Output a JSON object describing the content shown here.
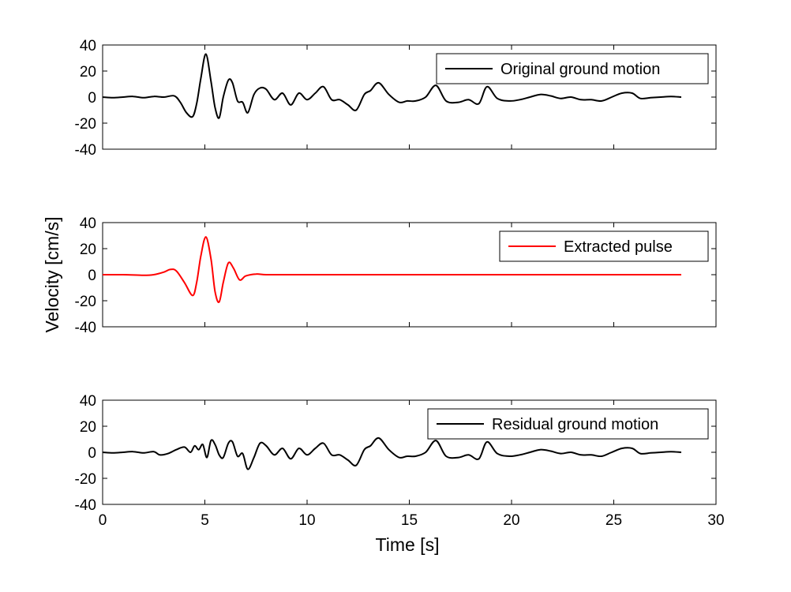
{
  "chart_data": {
    "type": "line",
    "xlabel": "Time [s]",
    "ylabel": "Velocity [cm/s]",
    "xlim": [
      0,
      30
    ],
    "xticks": [
      0,
      5,
      10,
      15,
      20,
      25,
      30
    ],
    "ylim": [
      -40,
      40
    ],
    "yticks": [
      -40,
      -20,
      0,
      20,
      40
    ],
    "grid": false,
    "legend_position": "top-right",
    "panels": [
      {
        "legend": "Original ground motion",
        "color": "#000000",
        "x": [
          0,
          0.5,
          1,
          1.5,
          2,
          2.5,
          3,
          3.5,
          3.8,
          4.1,
          4.4,
          4.6,
          4.8,
          5.05,
          5.3,
          5.5,
          5.7,
          5.9,
          6.15,
          6.35,
          6.6,
          6.85,
          7.1,
          7.4,
          7.7,
          8.0,
          8.4,
          8.8,
          9.2,
          9.6,
          10.0,
          10.4,
          10.8,
          11.2,
          11.6,
          12.0,
          12.4,
          12.8,
          13.1,
          13.5,
          14.0,
          14.5,
          14.9,
          15.3,
          15.8,
          16.3,
          16.8,
          17.4,
          17.9,
          18.4,
          18.8,
          19.3,
          19.9,
          20.4,
          20.9,
          21.4,
          21.9,
          22.4,
          22.9,
          23.4,
          23.9,
          24.4,
          24.9,
          25.4,
          25.9,
          26.3,
          26.8,
          27.3,
          27.8,
          28.3
        ],
        "values": [
          0,
          -0.5,
          0,
          0.5,
          -0.5,
          0.5,
          0,
          1,
          -4,
          -12,
          -15,
          -5,
          14,
          33,
          12,
          -8,
          -16,
          0,
          13,
          11,
          -3,
          -4,
          -12,
          2,
          7,
          6,
          -2,
          3,
          -6,
          3,
          -2,
          3,
          8,
          -2,
          -2,
          -6,
          -10,
          2,
          5,
          11,
          2,
          -4,
          -3,
          -3,
          0,
          9,
          -3,
          -4,
          -2,
          -5,
          8,
          -1,
          -3,
          -2,
          0,
          2,
          1,
          -1,
          0,
          -2,
          -2,
          -3,
          0,
          3,
          3,
          -1,
          -0.5,
          0,
          0.5,
          0
        ]
      },
      {
        "legend": "Extracted pulse",
        "color": "#ff0000",
        "x": [
          0,
          1,
          2,
          2.5,
          3,
          3.3,
          3.6,
          4.0,
          4.4,
          4.6,
          4.8,
          5.05,
          5.3,
          5.5,
          5.7,
          5.9,
          6.15,
          6.4,
          6.7,
          7.0,
          7.5,
          8.0,
          9.0,
          10,
          12,
          15,
          20,
          25,
          28.3
        ],
        "values": [
          0,
          0,
          -0.5,
          0,
          2,
          4,
          3,
          -6,
          -16,
          -6,
          14,
          29,
          12,
          -13,
          -21,
          -6,
          9,
          5,
          -4,
          -1,
          0.5,
          0,
          0,
          0,
          0,
          0,
          0,
          0,
          0
        ]
      },
      {
        "legend": "Residual ground motion",
        "color": "#000000",
        "x": [
          0,
          0.5,
          1,
          1.5,
          2,
          2.5,
          2.8,
          3.2,
          3.6,
          4.0,
          4.3,
          4.5,
          4.7,
          4.9,
          5.1,
          5.3,
          5.5,
          5.7,
          5.9,
          6.15,
          6.35,
          6.6,
          6.85,
          7.1,
          7.4,
          7.7,
          8.0,
          8.4,
          8.8,
          9.2,
          9.6,
          10.0,
          10.4,
          10.8,
          11.2,
          11.6,
          12.0,
          12.4,
          12.8,
          13.1,
          13.5,
          14.0,
          14.5,
          14.9,
          15.3,
          15.8,
          16.3,
          16.8,
          17.4,
          17.9,
          18.4,
          18.8,
          19.3,
          19.9,
          20.4,
          20.9,
          21.4,
          21.9,
          22.4,
          22.9,
          23.4,
          23.9,
          24.4,
          24.9,
          25.4,
          25.9,
          26.3,
          26.8,
          27.3,
          27.8,
          28.3
        ],
        "values": [
          0,
          -0.5,
          0,
          0.5,
          -0.5,
          0.5,
          -2,
          -1,
          2,
          4,
          0,
          5,
          2,
          6,
          -4,
          9,
          6,
          -2,
          -4,
          7,
          8,
          -3,
          -1,
          -13,
          -4,
          7,
          5,
          -2,
          3,
          -5,
          3,
          -2,
          3,
          7,
          -2,
          -2,
          -6,
          -10,
          2,
          5,
          11,
          2,
          -4,
          -3,
          -3,
          0,
          9,
          -3,
          -4,
          -2,
          -5,
          8,
          -1,
          -3,
          -2,
          0,
          2,
          1,
          -1,
          0,
          -2,
          -2,
          -3,
          0,
          3,
          3,
          -1,
          -0.5,
          0,
          0.5,
          0
        ]
      }
    ]
  }
}
